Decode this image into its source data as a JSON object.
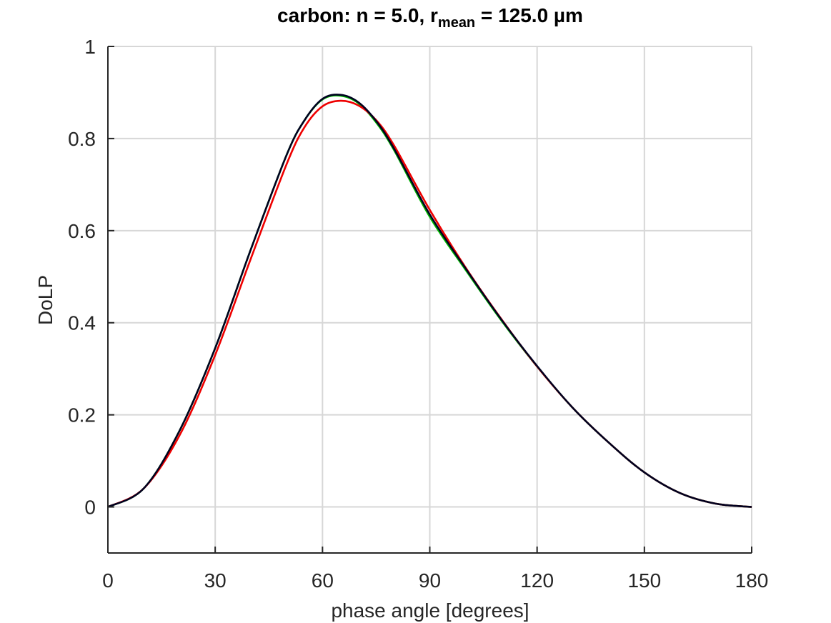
{
  "chart_data": {
    "type": "line",
    "title_main": "carbon: n = 5.0, r",
    "title_sub": "mean",
    "title_tail": " = 125.0 µm",
    "xlabel": "phase angle [degrees]",
    "ylabel": "DoLP",
    "xlim": [
      0,
      180
    ],
    "ylim": [
      -0.1,
      1
    ],
    "xticks": [
      0,
      30,
      60,
      90,
      120,
      150,
      180
    ],
    "yticks": [
      0,
      0.2,
      0.4,
      0.6,
      0.8,
      1
    ],
    "ytick_labels": [
      "0",
      "0.2",
      "0.4",
      "0.6",
      "0.8",
      "1"
    ],
    "grid": true,
    "series": [
      {
        "name": "green",
        "color": "#00bb00",
        "x": [
          0,
          10,
          20,
          30,
          40,
          50,
          55,
          60,
          65,
          70,
          75,
          80,
          90,
          100,
          110,
          120,
          130,
          140,
          150,
          160,
          170,
          180
        ],
        "y": [
          0,
          0.04,
          0.165,
          0.345,
          0.56,
          0.765,
          0.84,
          0.885,
          0.893,
          0.877,
          0.835,
          0.775,
          0.63,
          0.515,
          0.405,
          0.305,
          0.215,
          0.14,
          0.075,
          0.03,
          0.007,
          0
        ]
      },
      {
        "name": "red",
        "color": "#ee0000",
        "x": [
          0,
          10,
          20,
          30,
          40,
          50,
          55,
          60,
          65,
          70,
          75,
          80,
          90,
          100,
          110,
          120,
          130,
          140,
          150,
          160,
          170,
          180
        ],
        "y": [
          0,
          0.04,
          0.155,
          0.33,
          0.54,
          0.745,
          0.825,
          0.87,
          0.882,
          0.872,
          0.84,
          0.785,
          0.645,
          0.52,
          0.408,
          0.305,
          0.215,
          0.14,
          0.075,
          0.03,
          0.007,
          0
        ]
      },
      {
        "name": "black",
        "color": "#000020",
        "x": [
          0,
          10,
          20,
          30,
          40,
          50,
          55,
          60,
          65,
          70,
          75,
          80,
          90,
          100,
          110,
          120,
          130,
          140,
          150,
          160,
          170,
          180
        ],
        "y": [
          0,
          0.04,
          0.165,
          0.345,
          0.56,
          0.765,
          0.84,
          0.886,
          0.895,
          0.879,
          0.838,
          0.778,
          0.635,
          0.518,
          0.407,
          0.306,
          0.215,
          0.14,
          0.075,
          0.03,
          0.007,
          0
        ]
      }
    ]
  }
}
